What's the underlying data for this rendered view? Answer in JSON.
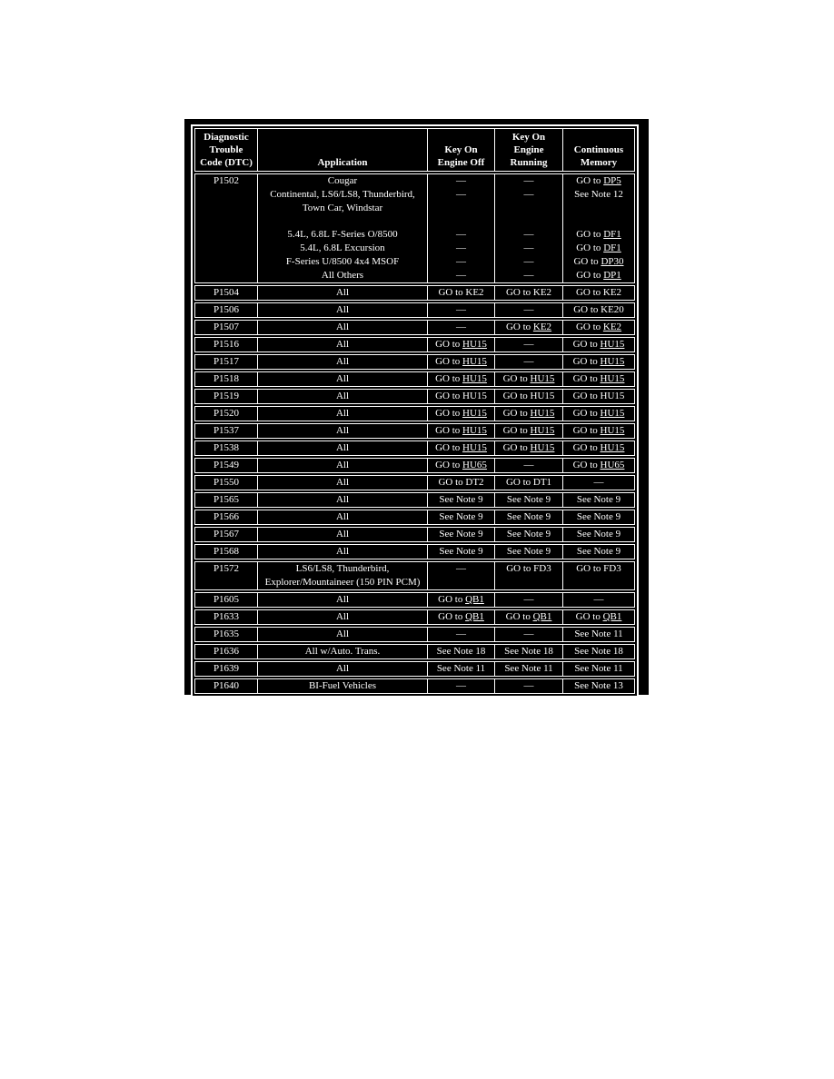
{
  "colors": {
    "page_background": "#ffffff",
    "table_background": "#000000",
    "table_text": "#ffffff",
    "grid_lines": "#ffffff"
  },
  "table": {
    "headers": [
      {
        "lines": [
          "Diagnostic",
          "Trouble",
          "Code (DTC)"
        ]
      },
      {
        "lines": [
          "Application"
        ]
      },
      {
        "lines": [
          "Key On",
          "Engine Off"
        ]
      },
      {
        "lines": [
          "Key On",
          "Engine",
          "Running"
        ]
      },
      {
        "lines": [
          "Continuous",
          "Memory"
        ]
      }
    ],
    "rows": [
      {
        "code": "P1502",
        "entries": [
          {
            "application": "Cougar",
            "koeo": "—",
            "koer": "—",
            "cm": "GO to [DP5]"
          },
          {
            "application": "Continental, LS6/LS8, Thunderbird, Town Car, Windstar",
            "koeo": "—",
            "koer": "—",
            "cm": "See Note 12",
            "tall": true
          },
          {
            "application": "5.4L, 6.8L F-Series O/8500",
            "koeo": "—",
            "koer": "—",
            "cm": "GO to [DF1]"
          },
          {
            "application": "5.4L, 6.8L Excursion",
            "koeo": "—",
            "koer": "—",
            "cm": "GO to [DF1]"
          },
          {
            "application": "F-Series U/8500 4x4 MSOF",
            "koeo": "—",
            "koer": "—",
            "cm": "GO to [DP30]"
          },
          {
            "application": "All Others",
            "koeo": "—",
            "koer": "—",
            "cm": "GO to [DP1]"
          }
        ]
      },
      {
        "code": "P1504",
        "entries": [
          {
            "application": "All",
            "koeo": "GO to KE2",
            "koer": "GO to KE2",
            "cm": "GO to KE2"
          }
        ]
      },
      {
        "code": "P1506",
        "entries": [
          {
            "application": "All",
            "koeo": "—",
            "koer": "—",
            "cm": "GO to KE20"
          }
        ]
      },
      {
        "code": "P1507",
        "entries": [
          {
            "application": "All",
            "koeo": "—",
            "koer": "GO to [KE2]",
            "cm": "GO to [KE2]"
          }
        ]
      },
      {
        "code": "P1516",
        "entries": [
          {
            "application": "All",
            "koeo": "GO to [HU15]",
            "koer": "—",
            "cm": "GO to [HU15]"
          }
        ]
      },
      {
        "code": "P1517",
        "entries": [
          {
            "application": "All",
            "koeo": "GO to [HU15]",
            "koer": "—",
            "cm": "GO to [HU15]"
          }
        ]
      },
      {
        "code": "P1518",
        "entries": [
          {
            "application": "All",
            "koeo": "GO to [HU15]",
            "koer": "GO to [HU15]",
            "cm": "GO to [HU15]"
          }
        ]
      },
      {
        "code": "P1519",
        "entries": [
          {
            "application": "All",
            "koeo": "GO to HU15",
            "koer": "GO to HU15",
            "cm": "GO to HU15"
          }
        ]
      },
      {
        "code": "P1520",
        "entries": [
          {
            "application": "All",
            "koeo": "GO to [HU15]",
            "koer": "GO to [HU15]",
            "cm": "GO to [HU15]"
          }
        ]
      },
      {
        "code": "P1537",
        "entries": [
          {
            "application": "All",
            "koeo": "GO to [HU15]",
            "koer": "GO to [HU15]",
            "cm": "GO to [HU15]"
          }
        ]
      },
      {
        "code": "P1538",
        "entries": [
          {
            "application": "All",
            "koeo": "GO to [HU15]",
            "koer": "GO to [HU15]",
            "cm": "GO to [HU15]"
          }
        ]
      },
      {
        "code": "P1549",
        "entries": [
          {
            "application": "All",
            "koeo": "GO to [HU65]",
            "koer": "—",
            "cm": "GO to [HU65]"
          }
        ]
      },
      {
        "code": "P1550",
        "entries": [
          {
            "application": "All",
            "koeo": "GO to DT2",
            "koer": "GO to DT1",
            "cm": "—"
          }
        ]
      },
      {
        "code": "P1565",
        "entries": [
          {
            "application": "All",
            "koeo": "See Note 9",
            "koer": "See Note 9",
            "cm": "See Note 9"
          }
        ]
      },
      {
        "code": "P1566",
        "entries": [
          {
            "application": "All",
            "koeo": "See Note 9",
            "koer": "See Note 9",
            "cm": "See Note 9"
          }
        ]
      },
      {
        "code": "P1567",
        "entries": [
          {
            "application": "All",
            "koeo": "See Note 9",
            "koer": "See Note 9",
            "cm": "See Note 9"
          }
        ]
      },
      {
        "code": "P1568",
        "entries": [
          {
            "application": "All",
            "koeo": "See Note 9",
            "koer": "See Note 9",
            "cm": "See Note 9"
          }
        ]
      },
      {
        "code": "P1572",
        "entries": [
          {
            "application": "LS6/LS8, Thunderbird, Explorer/Mountaineer (150 PIN PCM)",
            "koeo": "—",
            "koer": "GO to FD3",
            "cm": "GO to FD3"
          }
        ]
      },
      {
        "code": "P1605",
        "entries": [
          {
            "application": "All",
            "koeo": "GO to [QB1]",
            "koer": "—",
            "cm": "—"
          }
        ]
      },
      {
        "code": "P1633",
        "entries": [
          {
            "application": "All",
            "koeo": "GO to [QB1]",
            "koer": "GO to [QB1]",
            "cm": "GO to [QB1]"
          }
        ]
      },
      {
        "code": "P1635",
        "entries": [
          {
            "application": "All",
            "koeo": "—",
            "koer": "—",
            "cm": "See Note 11"
          }
        ]
      },
      {
        "code": "P1636",
        "entries": [
          {
            "application": "All w/Auto. Trans.",
            "koeo": "See Note 18",
            "koer": "See Note 18",
            "cm": "See Note 18"
          }
        ]
      },
      {
        "code": "P1639",
        "entries": [
          {
            "application": "All",
            "koeo": "See Note 11",
            "koer": "See Note 11",
            "cm": "See Note 11"
          }
        ]
      },
      {
        "code": "P1640",
        "entries": [
          {
            "application": "BI-Fuel Vehicles",
            "koeo": "—",
            "koer": "—",
            "cm": "See Note 13"
          }
        ]
      }
    ]
  }
}
